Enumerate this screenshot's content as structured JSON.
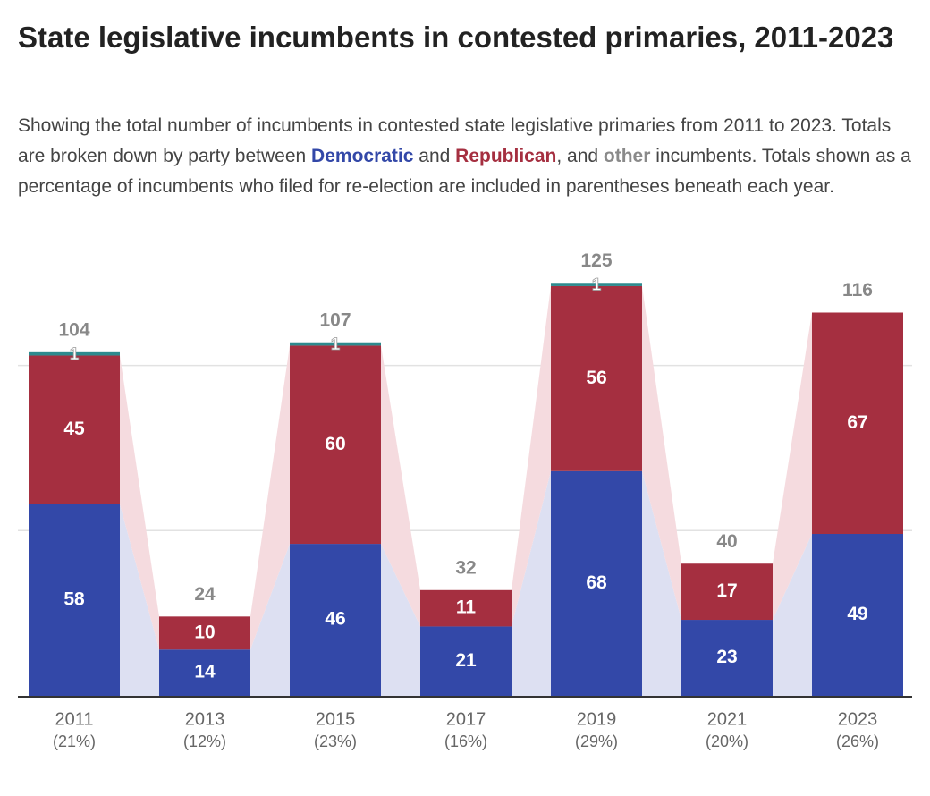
{
  "title": "State legislative incumbents in contested primaries, 2011-2023",
  "subtitle": {
    "part1": "Showing the total number of incumbents in contested state legislative primaries from 2011 to 2023. Totals are broken down by party between ",
    "dem": "Democratic",
    "part2": " and ",
    "rep": "Republican",
    "part3": ", and ",
    "oth": "other",
    "part4": " incumbents. Totals shown as a percentage of incumbents who filed for re-election are included in parentheses beneath each year."
  },
  "colors": {
    "democratic": "#3348a8",
    "republican": "#a52f40",
    "other": "#2d8a8e",
    "dem_band": "#dde0f2",
    "rep_band": "#f5dbdf",
    "total_label": "#888888",
    "axis_label": "#666666",
    "gridline": "#e2e2e2"
  },
  "chart_data": {
    "type": "bar",
    "stacked": true,
    "categories": [
      "2011",
      "2013",
      "2015",
      "2017",
      "2019",
      "2021",
      "2023"
    ],
    "category_sublabels": [
      "(21%)",
      "(12%)",
      "(23%)",
      "(16%)",
      "(29%)",
      "(20%)",
      "(26%)"
    ],
    "series": [
      {
        "name": "Democratic",
        "values": [
          58,
          14,
          46,
          21,
          68,
          23,
          49
        ]
      },
      {
        "name": "Republican",
        "values": [
          45,
          10,
          60,
          11,
          56,
          17,
          67
        ]
      },
      {
        "name": "other",
        "values": [
          1,
          0,
          1,
          0,
          1,
          0,
          0
        ]
      }
    ],
    "totals": [
      104,
      24,
      107,
      32,
      125,
      40,
      116
    ],
    "ylim": [
      0,
      125
    ],
    "gridlines": [
      50,
      100
    ]
  }
}
